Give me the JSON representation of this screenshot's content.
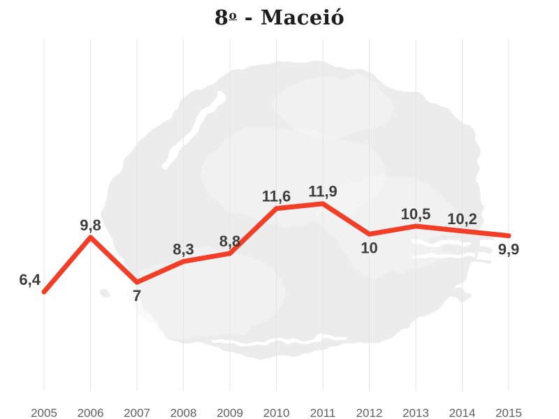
{
  "header": {
    "title_number": "8",
    "title_ordinal": "o",
    "title_rest": " - Maceió"
  },
  "chart_data": {
    "type": "line",
    "title": "8º - Maceió",
    "categories": [
      "2005",
      "2006",
      "2007",
      "2008",
      "2009",
      "2010",
      "2011",
      "2012",
      "2013",
      "2014",
      "2015"
    ],
    "values": [
      6.4,
      9.8,
      7,
      8.3,
      8.8,
      11.6,
      11.9,
      10,
      10.5,
      10.2,
      9.9
    ],
    "point_labels": [
      "6,4",
      "9,8",
      "7",
      "8,3",
      "8,8",
      "11,6",
      "11,9",
      "10",
      "10,5",
      "10,2",
      "9,9"
    ],
    "label_placement": [
      "above-left",
      "above",
      "below",
      "above",
      "above",
      "above",
      "above",
      "below",
      "above",
      "above",
      "below"
    ],
    "xlabel": "",
    "ylabel": "",
    "ylim": [
      6,
      12.5
    ],
    "grid": "vertical-only",
    "legend": "none",
    "line_color": "#f23e27",
    "data_label_color": "#3d3d3d",
    "axis_tick_color": "#5f5f5f",
    "gridline_color": "#e3e3e3",
    "background_splash_color": "#ececec",
    "title_color": "#1d1d1d"
  }
}
